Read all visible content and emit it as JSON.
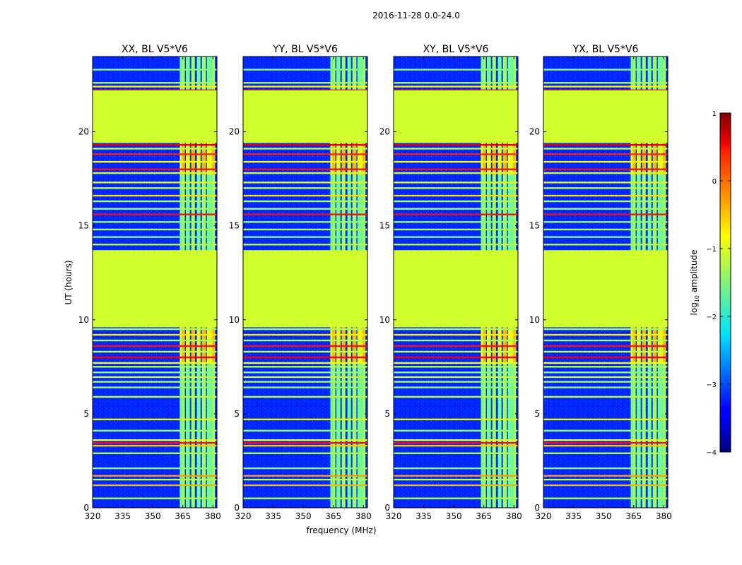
{
  "figure": {
    "suptitle": "2016-11-28 0.0-24.0",
    "xlabel": "frequency (MHz)",
    "ylabel": "UT (hours)"
  },
  "chart_data": {
    "type": "heatmap",
    "colormap": "jet",
    "title": "2016-11-28 0.0-24.0",
    "xlabel": "frequency (MHz)",
    "ylabel": "UT (hours)",
    "xlim": [
      320,
      382
    ],
    "ylim": [
      0,
      24
    ],
    "xticks": [
      320,
      335,
      350,
      365,
      380
    ],
    "xtick_labels": [
      "320",
      "335",
      "350",
      "365",
      "380"
    ],
    "yticks": [
      0,
      5,
      10,
      15,
      20
    ],
    "ytick_labels": [
      "0",
      "5",
      "10",
      "15",
      "20"
    ],
    "colorbar": {
      "label_prefix": "log",
      "label_sub": "10",
      "label_suffix": " amplitude",
      "range": [
        -4,
        1
      ],
      "ticks": [
        -4,
        -3,
        -2,
        -1,
        0,
        1
      ],
      "tick_labels": [
        "−4",
        "−3",
        "−2",
        "−1",
        "0",
        "1"
      ]
    },
    "panels": [
      {
        "title": "XX, BL V5*V6",
        "pol": "XX",
        "baseline": "V5*V6"
      },
      {
        "title": "YY, BL V5*V6",
        "pol": "YY",
        "baseline": "V5*V6"
      },
      {
        "title": "XY, BL V5*V6",
        "pol": "XY",
        "baseline": "V5*V6"
      },
      {
        "title": "YX, BL V5*V6",
        "pol": "YX",
        "baseline": "V5*V6"
      }
    ],
    "background_level": -3.2,
    "flagged_level": -1.1,
    "flagged_time_ranges": [
      [
        9.6,
        13.7
      ],
      [
        19.4,
        22.2
      ]
    ],
    "rfi_channel_blocks": [
      [
        363.5,
        364.5
      ],
      [
        364.5,
        366.0
      ],
      [
        366.5,
        368.5
      ],
      [
        369.2,
        371.0
      ],
      [
        372.0,
        373.8
      ],
      [
        374.5,
        376.5
      ],
      [
        377.0,
        379.5
      ],
      [
        379.5,
        381.0
      ]
    ],
    "rfi_level": -1.6,
    "rfi_strong_time_ranges": [
      [
        7.7,
        9.6
      ],
      [
        17.7,
        19.4
      ]
    ],
    "horizontal_lines": [
      {
        "t": 0.5,
        "level": -1.3
      },
      {
        "t": 1.2,
        "level": -0.5
      },
      {
        "t": 1.5,
        "level": -1.2
      },
      {
        "t": 1.7,
        "level": -0.4
      },
      {
        "t": 2.1,
        "level": -1.4
      },
      {
        "t": 2.9,
        "level": -1.3
      },
      {
        "t": 3.3,
        "level": -0.6
      },
      {
        "t": 3.45,
        "level": 0.3
      },
      {
        "t": 3.6,
        "level": -0.9
      },
      {
        "t": 4.1,
        "level": -1.4
      },
      {
        "t": 4.7,
        "level": -1.0
      },
      {
        "t": 5.9,
        "level": -1.2
      },
      {
        "t": 6.4,
        "level": -1.4
      },
      {
        "t": 6.7,
        "level": -1.3
      },
      {
        "t": 6.95,
        "level": -1.1
      },
      {
        "t": 7.2,
        "level": -1.4
      },
      {
        "t": 7.5,
        "level": -1.2
      },
      {
        "t": 7.7,
        "level": -0.9
      },
      {
        "t": 8.0,
        "level": 0.4
      },
      {
        "t": 8.3,
        "level": -1.2
      },
      {
        "t": 8.6,
        "level": 0.3
      },
      {
        "t": 8.9,
        "level": -1.3
      },
      {
        "t": 9.2,
        "level": -0.8
      },
      {
        "t": 9.5,
        "level": -1.3
      },
      {
        "t": 14.0,
        "level": -1.2
      },
      {
        "t": 14.4,
        "level": -1.5
      },
      {
        "t": 14.8,
        "level": -1.3
      },
      {
        "t": 15.2,
        "level": -1.4
      },
      {
        "t": 15.6,
        "level": 0.3
      },
      {
        "t": 15.9,
        "level": -1.3
      },
      {
        "t": 16.3,
        "level": -1.3
      },
      {
        "t": 16.6,
        "level": -0.7
      },
      {
        "t": 17.0,
        "level": -1.2
      },
      {
        "t": 17.3,
        "level": -1.0
      },
      {
        "t": 17.8,
        "level": -1.1
      },
      {
        "t": 18.0,
        "level": 0.3
      },
      {
        "t": 18.4,
        "level": -0.9
      },
      {
        "t": 18.8,
        "level": 0.2
      },
      {
        "t": 19.1,
        "level": -1.2
      },
      {
        "t": 19.3,
        "level": 0.5
      },
      {
        "t": 22.2,
        "level": 0.4
      },
      {
        "t": 22.4,
        "level": -0.8
      },
      {
        "t": 22.6,
        "level": -1.3
      },
      {
        "t": 23.3,
        "level": -1.5
      }
    ]
  }
}
